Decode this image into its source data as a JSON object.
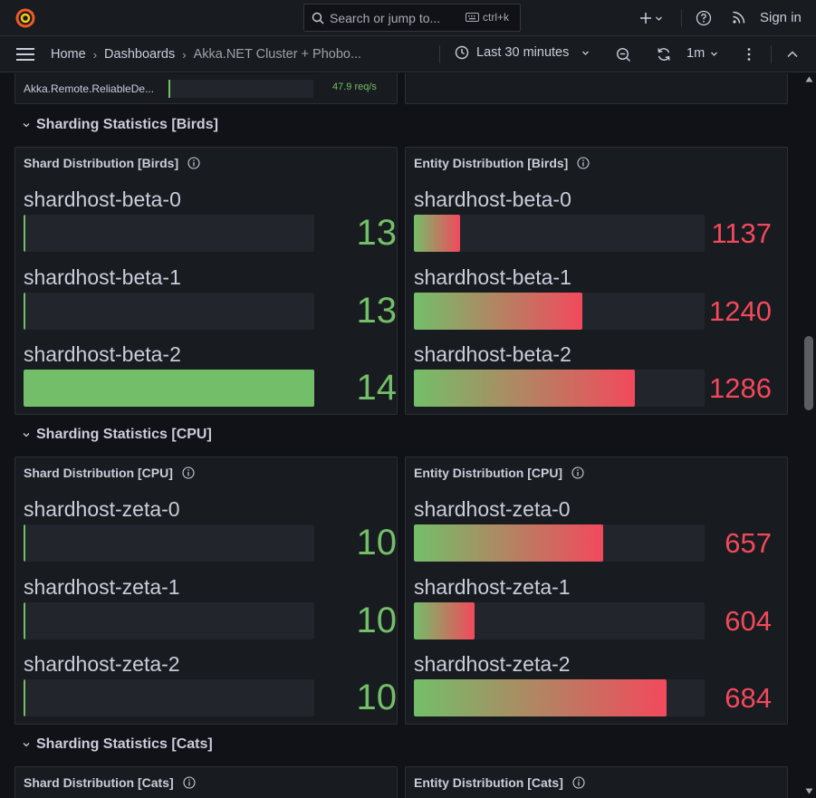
{
  "topbar": {
    "search_placeholder": "Search or jump to...",
    "search_shortcut": "ctrl+k",
    "sign_in": "Sign in"
  },
  "nav": {
    "breadcrumbs": [
      "Home",
      "Dashboards",
      "Akka.NET Cluster + Phobo..."
    ],
    "time_range": "Last 30 minutes",
    "refresh_interval": "1m"
  },
  "top_panel": {
    "label": "Akka.Remote.ReliableDe...",
    "value": "47.9 req/s"
  },
  "rows": [
    {
      "title": "Sharding Statistics [Birds]",
      "shard_panel": {
        "title": "Shard Distribution [Birds]",
        "items": [
          {
            "label": "shardhost-beta-0",
            "value": "13",
            "fill": 0.0
          },
          {
            "label": "shardhost-beta-1",
            "value": "13",
            "fill": 0.0
          },
          {
            "label": "shardhost-beta-2",
            "value": "14",
            "fill": 1.0
          }
        ]
      },
      "entity_panel": {
        "title": "Entity Distribution [Birds]",
        "items": [
          {
            "label": "shardhost-beta-0",
            "value": "1137",
            "fill": 0.16
          },
          {
            "label": "shardhost-beta-1",
            "value": "1240",
            "fill": 0.58
          },
          {
            "label": "shardhost-beta-2",
            "value": "1286",
            "fill": 0.76
          }
        ]
      }
    },
    {
      "title": "Sharding Statistics [CPU]",
      "shard_panel": {
        "title": "Shard Distribution [CPU]",
        "items": [
          {
            "label": "shardhost-zeta-0",
            "value": "10",
            "fill": 0.0
          },
          {
            "label": "shardhost-zeta-1",
            "value": "10",
            "fill": 0.0
          },
          {
            "label": "shardhost-zeta-2",
            "value": "10",
            "fill": 0.0
          }
        ]
      },
      "entity_panel": {
        "title": "Entity Distribution [CPU]",
        "items": [
          {
            "label": "shardhost-zeta-0",
            "value": "657",
            "fill": 0.65
          },
          {
            "label": "shardhost-zeta-1",
            "value": "604",
            "fill": 0.21
          },
          {
            "label": "shardhost-zeta-2",
            "value": "684",
            "fill": 0.87
          }
        ]
      }
    },
    {
      "title": "Sharding Statistics [Cats]",
      "shard_panel": {
        "title": "Shard Distribution [Cats]"
      },
      "entity_panel": {
        "title": "Entity Distribution [Cats]"
      }
    }
  ],
  "colors": {
    "green": "#73bf69",
    "red": "#f2495c",
    "panel_bg": "#181b1f",
    "page_bg": "#111217"
  }
}
